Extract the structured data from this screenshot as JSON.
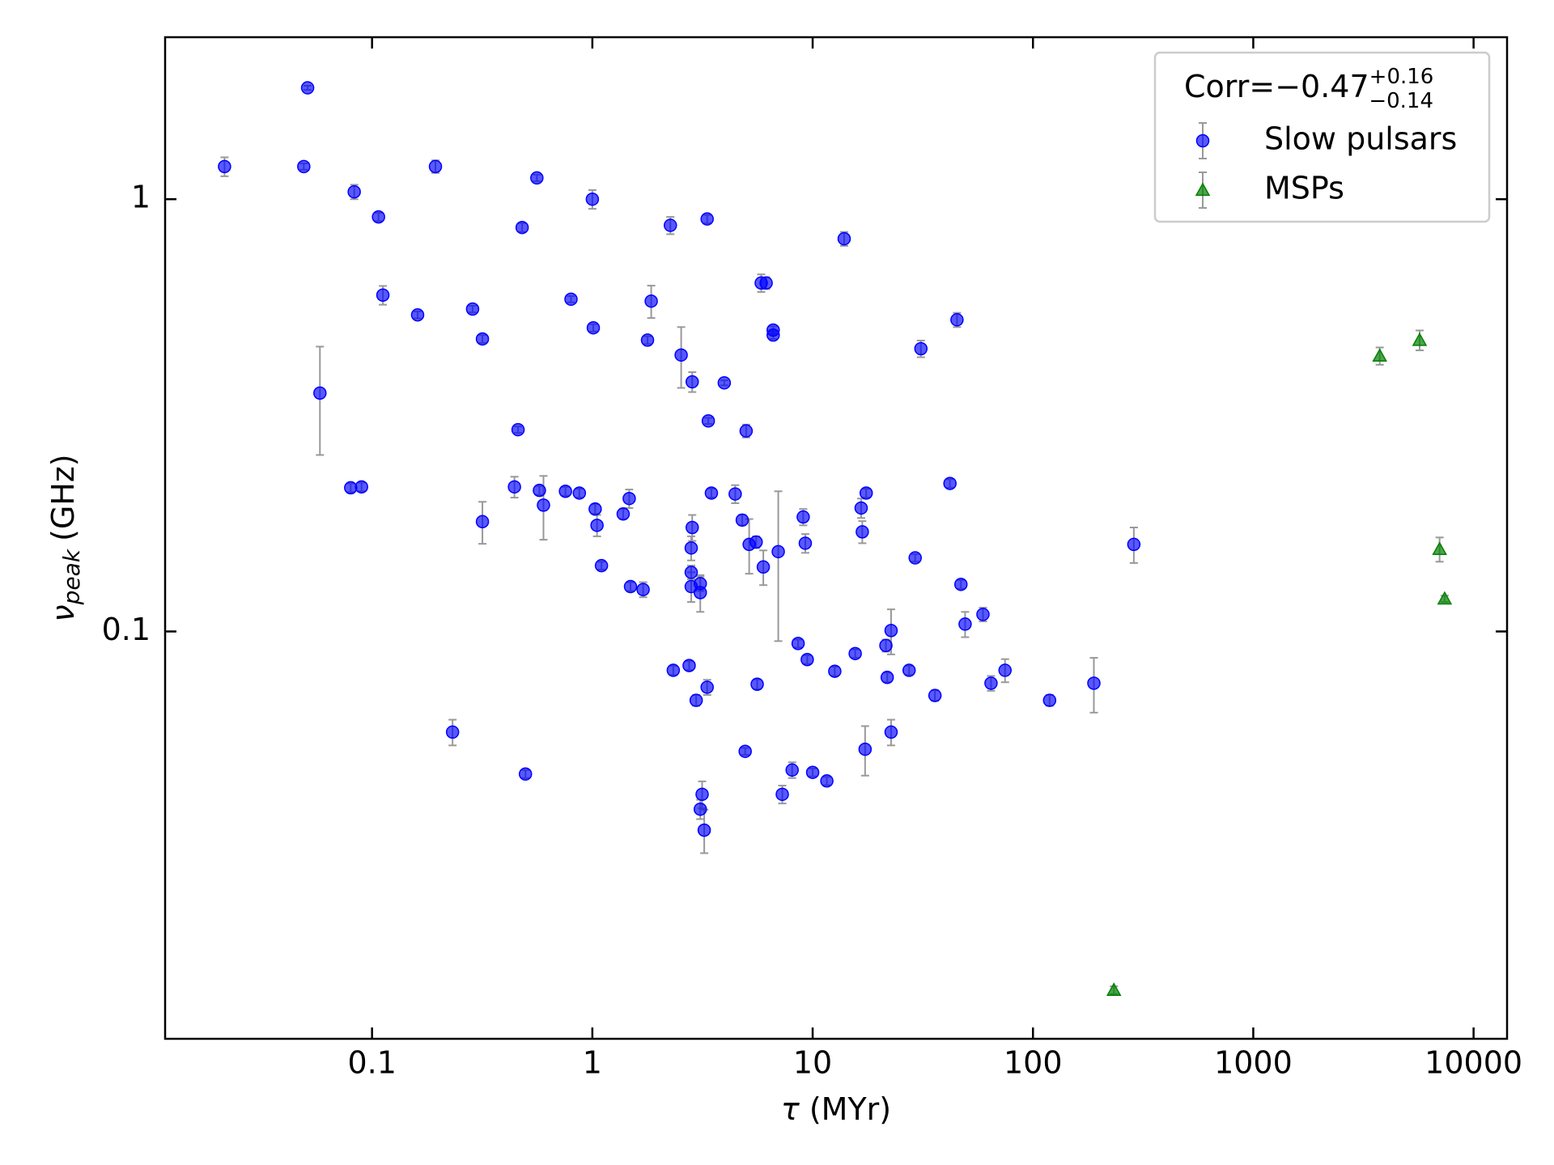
{
  "chart_data": {
    "type": "scatter",
    "xlabel": {
      "symbol": "τ",
      "unit": "(MYr)"
    },
    "ylabel": {
      "symbol": "ν",
      "subscript": "peak",
      "unit": "(GHz)"
    },
    "xscale": "log",
    "yscale": "log",
    "xlim": [
      0.0115,
      14190
    ],
    "ylim": [
      0.01142,
      2.37
    ],
    "xticks": [
      0.1,
      1,
      10,
      100,
      1000,
      10000
    ],
    "yticks": [
      0.1,
      1
    ],
    "legend_loc": "upper right",
    "legend_title": {
      "text": "Corr=−0.47",
      "sup": "+0.16",
      "sub": "−0.14"
    },
    "errorbar_color": "#999999",
    "series": [
      {
        "name": "Slow pulsars",
        "color": "#0000ff",
        "marker": "o",
        "x": [
          0.0214,
          0.051,
          0.049,
          0.083,
          0.107,
          0.194,
          0.56,
          1.0,
          0.48,
          2.26,
          3.32,
          13.9,
          0.112,
          0.161,
          0.286,
          0.317,
          0.8,
          1.01,
          1.85,
          1.78,
          2.53,
          2.84,
          3.97,
          3.36,
          5.84,
          6.15,
          6.62,
          6.62,
          31.0,
          45.2,
          4.99,
          0.058,
          0.46,
          0.08,
          0.0896,
          0.317,
          0.232,
          0.497,
          0.443,
          0.575,
          0.6,
          0.755,
          0.873,
          1.03,
          1.05,
          1.1,
          1.38,
          1.47,
          1.49,
          1.7,
          2.33,
          2.75,
          2.84,
          2.81,
          2.81,
          2.81,
          3.09,
          3.09,
          2.96,
          3.32,
          3.47,
          4.45,
          4.79,
          5.15,
          5.54,
          5.97,
          6.98,
          5.6,
          4.94,
          3.15,
          3.09,
          3.22,
          7.28,
          8.07,
          10,
          11.6,
          8.59,
          9.45,
          9.06,
          9.26,
          12.6,
          15.6,
          17.3,
          16.6,
          16.8,
          17.5,
          21.5,
          22.7,
          21.8,
          22.7,
          27.4,
          29.2,
          35.9,
          42.0,
          47.1,
          49.2,
          59.3,
          64.5,
          74.7,
          119,
          189,
          287
        ],
        "values": [
          1.19,
          1.81,
          1.19,
          1.04,
          0.91,
          1.19,
          1.12,
          1.0,
          0.86,
          0.87,
          0.9,
          0.81,
          0.6,
          0.54,
          0.557,
          0.475,
          0.587,
          0.504,
          0.581,
          0.472,
          0.436,
          0.378,
          0.376,
          0.307,
          0.64,
          0.64,
          0.498,
          0.485,
          0.451,
          0.526,
          0.291,
          0.356,
          0.293,
          0.215,
          0.216,
          0.1795,
          0.0585,
          0.0468,
          0.216,
          0.212,
          0.196,
          0.211,
          0.209,
          0.192,
          0.176,
          0.142,
          0.187,
          0.203,
          0.127,
          0.125,
          0.0813,
          0.0834,
          0.174,
          0.156,
          0.137,
          0.127,
          0.129,
          0.123,
          0.0693,
          0.0743,
          0.209,
          0.208,
          0.181,
          0.159,
          0.161,
          0.141,
          0.153,
          0.0755,
          0.0528,
          0.042,
          0.0388,
          0.0347,
          0.042,
          0.0478,
          0.0472,
          0.0451,
          0.0938,
          0.0861,
          0.184,
          0.16,
          0.0809,
          0.0889,
          0.0534,
          0.193,
          0.17,
          0.209,
          0.0928,
          0.1005,
          0.0783,
          0.0585,
          0.0813,
          0.148,
          0.0711,
          0.22,
          0.1285,
          0.104,
          0.1095,
          0.0759,
          0.0813,
          0.0693,
          0.0759,
          0.159
        ],
        "errors": [
          0.06,
          0.02,
          0.02,
          0.04,
          0.02,
          0.04,
          0.02,
          0.05,
          0.02,
          0.04,
          0.02,
          0.03,
          0.03,
          0.01,
          0.01,
          0.01,
          0.01,
          0.01,
          0.05,
          0.01,
          0.07,
          0.02,
          0.005,
          0.005,
          0.03,
          0.02,
          0.01,
          0.01,
          0.02,
          0.02,
          0.01,
          0.1,
          0.005,
          0.005,
          0.005,
          0.02,
          0.004,
          0.001,
          0.012,
          0.005,
          0.033,
          0.005,
          0.005,
          0.005,
          0.01,
          0.003,
          0.005,
          0.01,
          0.003,
          0.005,
          0.002,
          0.002,
          0.012,
          0.01,
          0.005,
          0.01,
          0.005,
          0.012,
          0.002,
          0.003,
          0.005,
          0.01,
          0.005,
          0.023,
          0.005,
          0.013,
          0.058,
          0.002,
          0.001,
          0.003,
          0.002,
          0.004,
          0.002,
          0.002,
          0.001,
          0.001,
          0.002,
          0.002,
          0.008,
          0.008,
          0.002,
          0.002,
          0.007,
          0.01,
          0.01,
          0.005,
          0.003,
          0.012,
          0.002,
          0.004,
          0.002,
          0.003,
          0.002,
          0.005,
          0.003,
          0.007,
          0.004,
          0.003,
          0.005,
          0.002,
          0.011,
          0.015
        ]
      },
      {
        "name": "MSPs",
        "color": "#008000",
        "marker": "^",
        "x": [
          233,
          3750,
          5690,
          7010,
          7390
        ],
        "values": [
          0.0148,
          0.434,
          0.472,
          0.155,
          0.119
        ],
        "errors": [
          0.0003,
          0.02,
          0.025,
          0.01,
          0.002
        ]
      }
    ]
  }
}
